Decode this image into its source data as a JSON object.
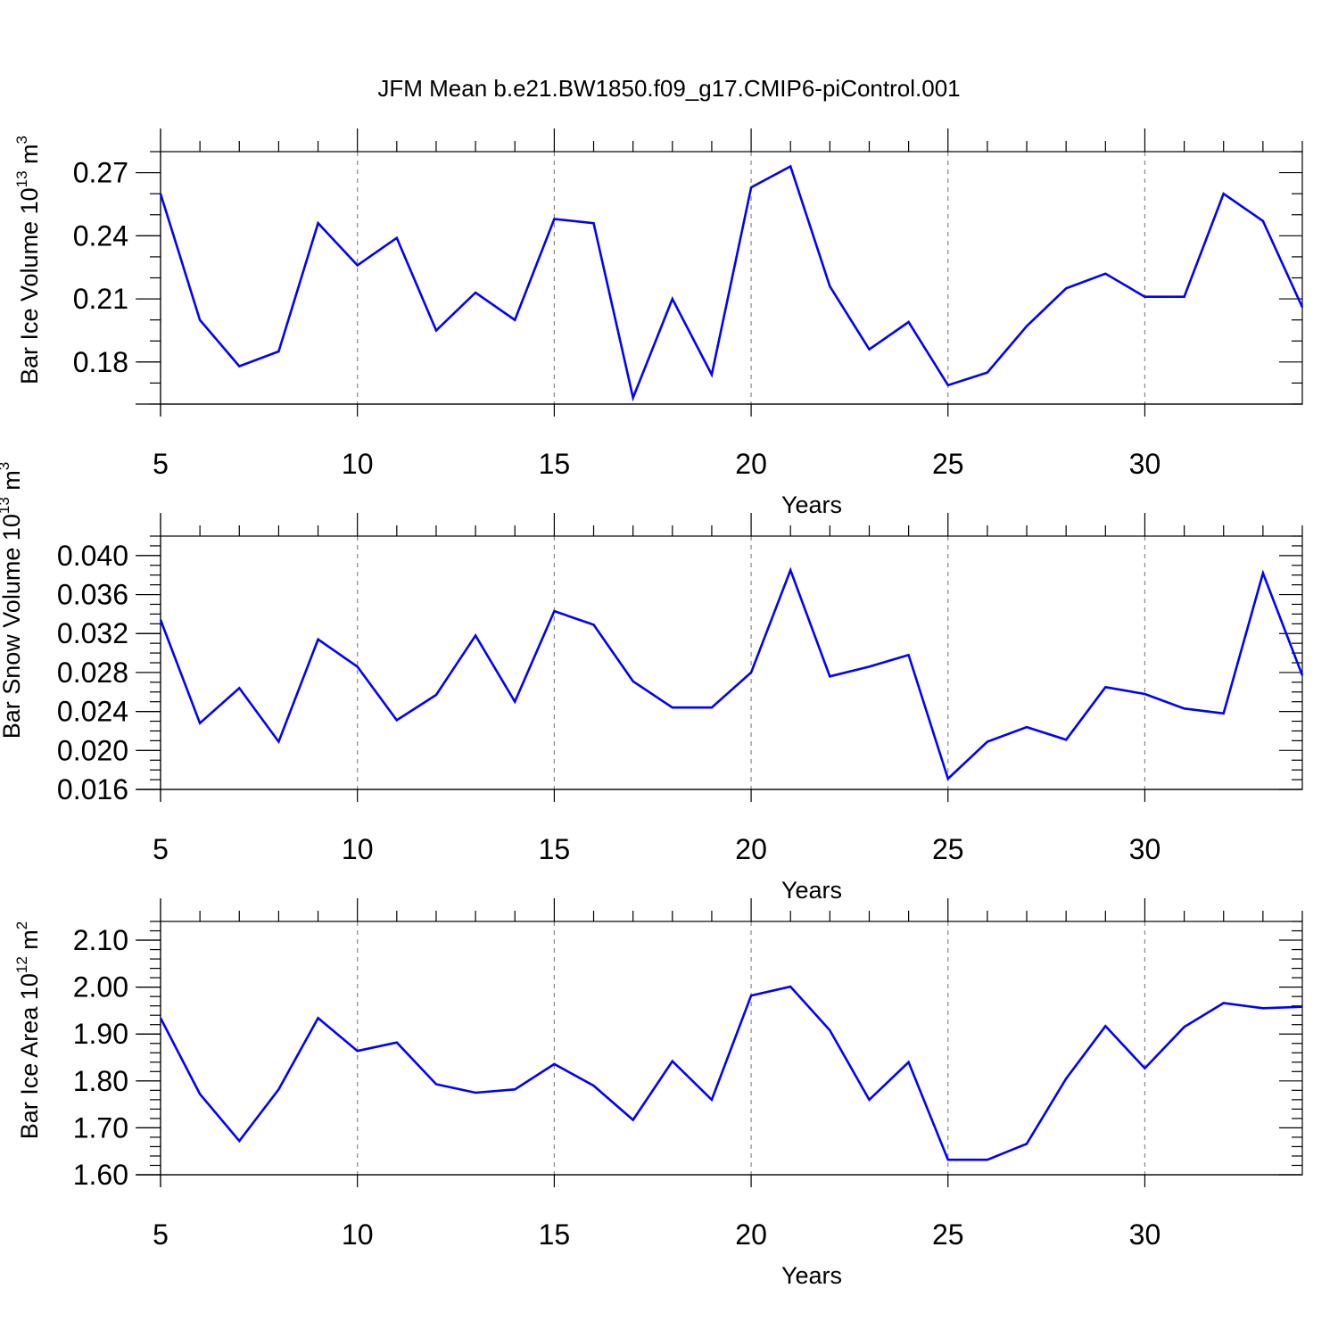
{
  "figure": {
    "title": "JFM Mean b.e21.BW1850.f09_g17.CMIP6-piControl.001",
    "line_color": "#0000ff"
  },
  "chart_data": [
    {
      "type": "line",
      "ylabel_prefix": "Bar Ice Volume 10",
      "ylabel_exp": "13",
      "ylabel_unit": " m",
      "ylabel_unit_exp": "3",
      "xlabel": "Years",
      "xlim": [
        5,
        34
      ],
      "ylim": [
        0.16,
        0.28
      ],
      "y_ticks": [
        0.18,
        0.21,
        0.24,
        0.27
      ],
      "y_tick_labels": [
        "0.18",
        "0.21",
        "0.24",
        "0.27"
      ],
      "y_minor_step": 0.01,
      "x_ticks": [
        5,
        10,
        15,
        20,
        25,
        30
      ],
      "x_tick_labels": [
        "5",
        "10",
        "15",
        "20",
        "25",
        "30"
      ],
      "grid": "vertical-dashed-at-major-x",
      "series": [
        {
          "x": [
            5,
            6,
            7,
            8,
            9,
            10,
            11,
            12,
            13,
            14,
            15,
            16,
            17,
            18,
            19,
            20,
            21,
            22,
            23,
            24,
            25,
            26,
            27,
            28,
            29,
            30,
            31,
            32,
            33,
            34
          ],
          "values": [
            0.26,
            0.2,
            0.178,
            0.185,
            0.246,
            0.226,
            0.239,
            0.195,
            0.213,
            0.2,
            0.248,
            0.246,
            0.163,
            0.21,
            0.174,
            0.263,
            0.273,
            0.216,
            0.186,
            0.199,
            0.169,
            0.175,
            0.197,
            0.215,
            0.222,
            0.211,
            0.211,
            0.26,
            0.247,
            0.206
          ]
        }
      ]
    },
    {
      "type": "line",
      "ylabel_prefix": "Bar Snow Volume 10",
      "ylabel_exp": "13",
      "ylabel_unit": " m",
      "ylabel_unit_exp": "3",
      "xlabel": "Years",
      "xlim": [
        5,
        34
      ],
      "ylim": [
        0.016,
        0.042
      ],
      "y_ticks": [
        0.016,
        0.02,
        0.024,
        0.028,
        0.032,
        0.036,
        0.04
      ],
      "y_tick_labels": [
        "0.016",
        "0.020",
        "0.024",
        "0.028",
        "0.032",
        "0.036",
        "0.040"
      ],
      "y_minor_step": 0.001,
      "x_ticks": [
        5,
        10,
        15,
        20,
        25,
        30
      ],
      "x_tick_labels": [
        "5",
        "10",
        "15",
        "20",
        "25",
        "30"
      ],
      "grid": "vertical-dashed-at-major-x",
      "series": [
        {
          "x": [
            5,
            6,
            7,
            8,
            9,
            10,
            11,
            12,
            13,
            14,
            15,
            16,
            17,
            18,
            19,
            20,
            21,
            22,
            23,
            24,
            25,
            26,
            27,
            28,
            29,
            30,
            31,
            32,
            33,
            34
          ],
          "values": [
            0.0334,
            0.0228,
            0.0264,
            0.0209,
            0.0314,
            0.0286,
            0.0231,
            0.0257,
            0.0318,
            0.025,
            0.0343,
            0.0329,
            0.0271,
            0.0244,
            0.0244,
            0.028,
            0.0385,
            0.0276,
            0.0286,
            0.0298,
            0.0171,
            0.0209,
            0.0224,
            0.0211,
            0.0265,
            0.0258,
            0.0243,
            0.0238,
            0.0382,
            0.0277
          ]
        }
      ]
    },
    {
      "type": "line",
      "ylabel_prefix": "Bar Ice Area 10",
      "ylabel_exp": "12",
      "ylabel_unit": " m",
      "ylabel_unit_exp": "2",
      "xlabel": "Years",
      "xlim": [
        5,
        34
      ],
      "ylim": [
        1.6,
        2.14
      ],
      "y_ticks": [
        1.6,
        1.7,
        1.8,
        1.9,
        2.0,
        2.1
      ],
      "y_tick_labels": [
        "1.60",
        "1.70",
        "1.80",
        "1.90",
        "2.00",
        "2.10"
      ],
      "y_minor_step": 0.02,
      "x_ticks": [
        5,
        10,
        15,
        20,
        25,
        30
      ],
      "x_tick_labels": [
        "5",
        "10",
        "15",
        "20",
        "25",
        "30"
      ],
      "grid": "vertical-dashed-at-major-x",
      "series": [
        {
          "x": [
            5,
            6,
            7,
            8,
            9,
            10,
            11,
            12,
            13,
            14,
            15,
            16,
            17,
            18,
            19,
            20,
            21,
            22,
            23,
            24,
            25,
            26,
            27,
            28,
            29,
            30,
            31,
            32,
            33,
            34
          ],
          "values": [
            1.934,
            1.772,
            1.672,
            1.782,
            1.934,
            1.864,
            1.882,
            1.793,
            1.775,
            1.782,
            1.836,
            1.79,
            1.717,
            1.842,
            1.76,
            1.982,
            2.001,
            1.908,
            1.76,
            1.84,
            1.632,
            1.632,
            1.666,
            1.805,
            1.917,
            1.827,
            1.915,
            1.966,
            1.955,
            1.958
          ]
        }
      ]
    }
  ]
}
